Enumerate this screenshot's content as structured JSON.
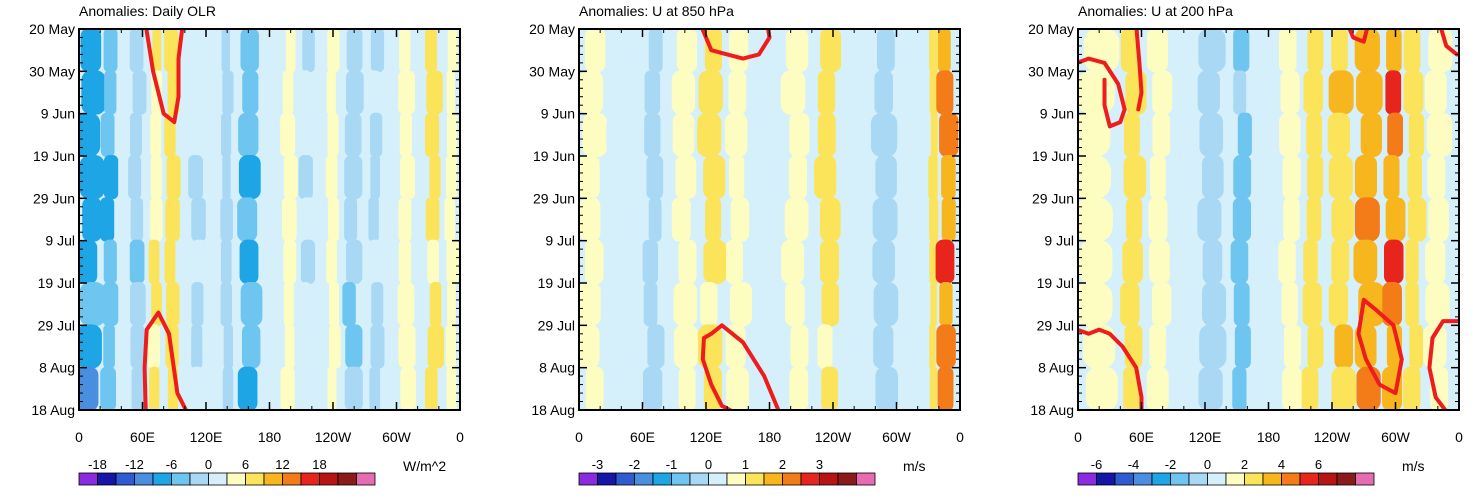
{
  "chart_data": [
    {
      "type": "heatmap",
      "title": "Anomalies: Daily OLR",
      "units": "W/m^2",
      "x_ticks": [
        "0",
        "60E",
        "120E",
        "180",
        "120W",
        "60W",
        "0"
      ],
      "y_ticks": [
        "20 May",
        "30 May",
        "9 Jun",
        "19 Jun",
        "29 Jun",
        "9 Jul",
        "19 Jul",
        "29 Jul",
        "8 Aug",
        "18 Aug"
      ],
      "colorbar_labels": [
        "-18",
        "-12",
        "-6",
        "0",
        "6",
        "12",
        "18"
      ],
      "colorbar_levels": [
        -21,
        -18,
        -15,
        -12,
        -9,
        -6,
        -3,
        0,
        3,
        6,
        9,
        12,
        15,
        18,
        21
      ],
      "colorbar_colors": [
        "#8a2be2",
        "#1515a8",
        "#2f5bd0",
        "#4a8ee0",
        "#1ea5e6",
        "#6ec6f0",
        "#a9d8f5",
        "#d6f0fb",
        "#fdfdc2",
        "#fbe35a",
        "#f7b51e",
        "#f37b18",
        "#e8251c",
        "#b81414",
        "#8b1a1a",
        "#e66bb0"
      ],
      "bands": [
        {
          "lon": 10,
          "width": 22,
          "value": -10
        },
        {
          "lon": 28,
          "width": 14,
          "value": -8
        },
        {
          "lon": 55,
          "width": 14,
          "value": -5
        },
        {
          "lon": 72,
          "width": 10,
          "value": 3
        },
        {
          "lon": 88,
          "width": 12,
          "value": 4
        },
        {
          "lon": 112,
          "width": 14,
          "value": -3
        },
        {
          "lon": 140,
          "width": 10,
          "value": -4
        },
        {
          "lon": 160,
          "width": 20,
          "value": -9
        },
        {
          "lon": 198,
          "width": 12,
          "value": 2
        },
        {
          "lon": 215,
          "width": 12,
          "value": -3
        },
        {
          "lon": 240,
          "width": 10,
          "value": 1
        },
        {
          "lon": 258,
          "width": 16,
          "value": -5
        },
        {
          "lon": 280,
          "width": 12,
          "value": -3
        },
        {
          "lon": 310,
          "width": 14,
          "value": 1
        },
        {
          "lon": 335,
          "width": 14,
          "value": 4
        },
        {
          "lon": 352,
          "width": 10,
          "value": 2
        }
      ],
      "contours": [
        {
          "label": "upper",
          "points": [
            [
              63,
              -1
            ],
            [
              70,
              10
            ],
            [
              80,
              20
            ],
            [
              90,
              22
            ],
            [
              94,
              16
            ],
            [
              94,
              7
            ],
            [
              98,
              -1
            ]
          ]
        },
        {
          "label": "lower",
          "points": [
            [
              63,
              90
            ],
            [
              62,
              80
            ],
            [
              64,
              71
            ],
            [
              75,
              67
            ],
            [
              85,
              72
            ],
            [
              93,
              86
            ],
            [
              101,
              90
            ]
          ]
        }
      ]
    },
    {
      "type": "heatmap",
      "title": "Anomalies: U at 850 hPa",
      "units": "m/s",
      "x_ticks": [
        "0",
        "60E",
        "120E",
        "180",
        "120W",
        "60W",
        "0"
      ],
      "y_ticks": [
        "20 May",
        "30 May",
        "9 Jun",
        "19 Jun",
        "29 Jun",
        "9 Jul",
        "19 Jul",
        "29 Jul",
        "8 Aug",
        "18 Aug"
      ],
      "colorbar_labels": [
        "-3",
        "-2",
        "-1",
        "0",
        "1",
        "2",
        "3"
      ],
      "colorbar_levels": [
        -3.5,
        -3,
        -2.5,
        -2,
        -1.5,
        -1,
        -0.5,
        0,
        0.5,
        1,
        1.5,
        2,
        2.5,
        3,
        3.5
      ],
      "colorbar_colors": [
        "#8a2be2",
        "#1515a8",
        "#2f5bd0",
        "#4a8ee0",
        "#1ea5e6",
        "#6ec6f0",
        "#a9d8f5",
        "#d6f0fb",
        "#fdfdc2",
        "#fbe35a",
        "#f7b51e",
        "#f37b18",
        "#e8251c",
        "#b81414",
        "#8b1a1a",
        "#e66bb0"
      ],
      "bands": [
        {
          "lon": 12,
          "width": 20,
          "value": 0.3
        },
        {
          "lon": 40,
          "width": 26,
          "value": -0.3
        },
        {
          "lon": 70,
          "width": 16,
          "value": -0.8
        },
        {
          "lon": 100,
          "width": 20,
          "value": 0.4
        },
        {
          "lon": 125,
          "width": 20,
          "value": 0.6
        },
        {
          "lon": 150,
          "width": 18,
          "value": 0.3
        },
        {
          "lon": 178,
          "width": 16,
          "value": -0.3
        },
        {
          "lon": 205,
          "width": 22,
          "value": 0.3
        },
        {
          "lon": 235,
          "width": 18,
          "value": 0.6
        },
        {
          "lon": 262,
          "width": 16,
          "value": -0.3
        },
        {
          "lon": 290,
          "width": 22,
          "value": -0.8
        },
        {
          "lon": 318,
          "width": 10,
          "value": -0.3
        },
        {
          "lon": 335,
          "width": 8,
          "value": 0.8
        },
        {
          "lon": 348,
          "width": 16,
          "value": 1.7
        }
      ],
      "contours": [
        {
          "label": "upper",
          "points": [
            [
              115,
              -1
            ],
            [
              125,
              5
            ],
            [
              140,
              6
            ],
            [
              155,
              7
            ],
            [
              170,
              6
            ],
            [
              180,
              2
            ],
            [
              178,
              -1
            ]
          ]
        },
        {
          "label": "lower",
          "points": [
            [
              125,
              72
            ],
            [
              135,
              70
            ],
            [
              155,
              74
            ],
            [
              175,
              82
            ],
            [
              190,
              91
            ],
            [
              150,
              91
            ],
            [
              135,
              89
            ],
            [
              125,
              84
            ],
            [
              117,
              78
            ],
            [
              118,
              73
            ],
            [
              125,
              72
            ]
          ]
        }
      ]
    },
    {
      "type": "heatmap",
      "title": "Anomalies: U at 200 hPa",
      "units": "m/s",
      "x_ticks": [
        "0",
        "60E",
        "120E",
        "180",
        "120W",
        "60W",
        "0"
      ],
      "y_ticks": [
        "20 May",
        "30 May",
        "9 Jun",
        "19 Jun",
        "29 Jun",
        "9 Jul",
        "19 Jul",
        "29 Jul",
        "8 Aug",
        "18 Aug"
      ],
      "colorbar_labels": [
        "-6",
        "-4",
        "-2",
        "0",
        "2",
        "4",
        "6"
      ],
      "colorbar_levels": [
        -7,
        -6,
        -5,
        -4,
        -3,
        -2,
        -1,
        0,
        1,
        2,
        3,
        4,
        5,
        6,
        7
      ],
      "colorbar_colors": [
        "#8a2be2",
        "#1515a8",
        "#2f5bd0",
        "#4a8ee0",
        "#1ea5e6",
        "#6ec6f0",
        "#a9d8f5",
        "#d6f0fb",
        "#fdfdc2",
        "#fbe35a",
        "#f7b51e",
        "#f37b18",
        "#e8251c",
        "#b81414",
        "#8b1a1a",
        "#e66bb0"
      ],
      "bands": [
        {
          "lon": 18,
          "width": 36,
          "value": 0.6
        },
        {
          "lon": 52,
          "width": 18,
          "value": 1.5
        },
        {
          "lon": 78,
          "width": 18,
          "value": 0.4
        },
        {
          "lon": 100,
          "width": 18,
          "value": -0.6
        },
        {
          "lon": 125,
          "width": 22,
          "value": -1.4
        },
        {
          "lon": 155,
          "width": 16,
          "value": -2.2
        },
        {
          "lon": 180,
          "width": 18,
          "value": -0.6
        },
        {
          "lon": 200,
          "width": 18,
          "value": 0.6
        },
        {
          "lon": 222,
          "width": 16,
          "value": 1.4
        },
        {
          "lon": 248,
          "width": 20,
          "value": 1.8
        },
        {
          "lon": 275,
          "width": 22,
          "value": 2.6
        },
        {
          "lon": 298,
          "width": 16,
          "value": 3.3
        },
        {
          "lon": 318,
          "width": 16,
          "value": 1.4
        },
        {
          "lon": 340,
          "width": 22,
          "value": 0.4
        }
      ],
      "contours": [
        {
          "label": "upper-left",
          "points": [
            [
              -1,
              8
            ],
            [
              10,
              7
            ],
            [
              25,
              8
            ],
            [
              38,
              13
            ],
            [
              44,
              19
            ],
            [
              40,
              22
            ],
            [
              30,
              23
            ],
            [
              25,
              18
            ],
            [
              25,
              12
            ]
          ]
        },
        {
          "label": "upper-branch",
          "points": [
            [
              55,
              -1
            ],
            [
              58,
              8
            ],
            [
              60,
              15
            ],
            [
              57,
              19
            ]
          ]
        },
        {
          "label": "upper-right-1",
          "points": [
            [
              255,
              -1
            ],
            [
              260,
              2
            ],
            [
              270,
              3
            ],
            [
              274,
              -1
            ]
          ]
        },
        {
          "label": "upper-right-2",
          "points": [
            [
              342,
              -1
            ],
            [
              348,
              4
            ],
            [
              358,
              6
            ],
            [
              361,
              6
            ]
          ]
        },
        {
          "label": "lower-left",
          "points": [
            [
              -1,
              71
            ],
            [
              10,
              72
            ],
            [
              20,
              71
            ],
            [
              30,
              72
            ],
            [
              42,
              75
            ],
            [
              55,
              80
            ],
            [
              60,
              87
            ],
            [
              60,
              91
            ]
          ]
        },
        {
          "label": "lower-mid",
          "points": [
            [
              270,
              64
            ],
            [
              280,
              66
            ],
            [
              298,
              70
            ],
            [
              306,
              78
            ],
            [
              300,
              86
            ],
            [
              285,
              84
            ],
            [
              272,
              78
            ],
            [
              265,
              72
            ],
            [
              270,
              64
            ]
          ]
        },
        {
          "label": "lower-right",
          "points": [
            [
              361,
              69
            ],
            [
              345,
              69
            ],
            [
              335,
              73
            ],
            [
              332,
              80
            ],
            [
              338,
              87
            ],
            [
              350,
              91
            ]
          ]
        }
      ]
    }
  ]
}
